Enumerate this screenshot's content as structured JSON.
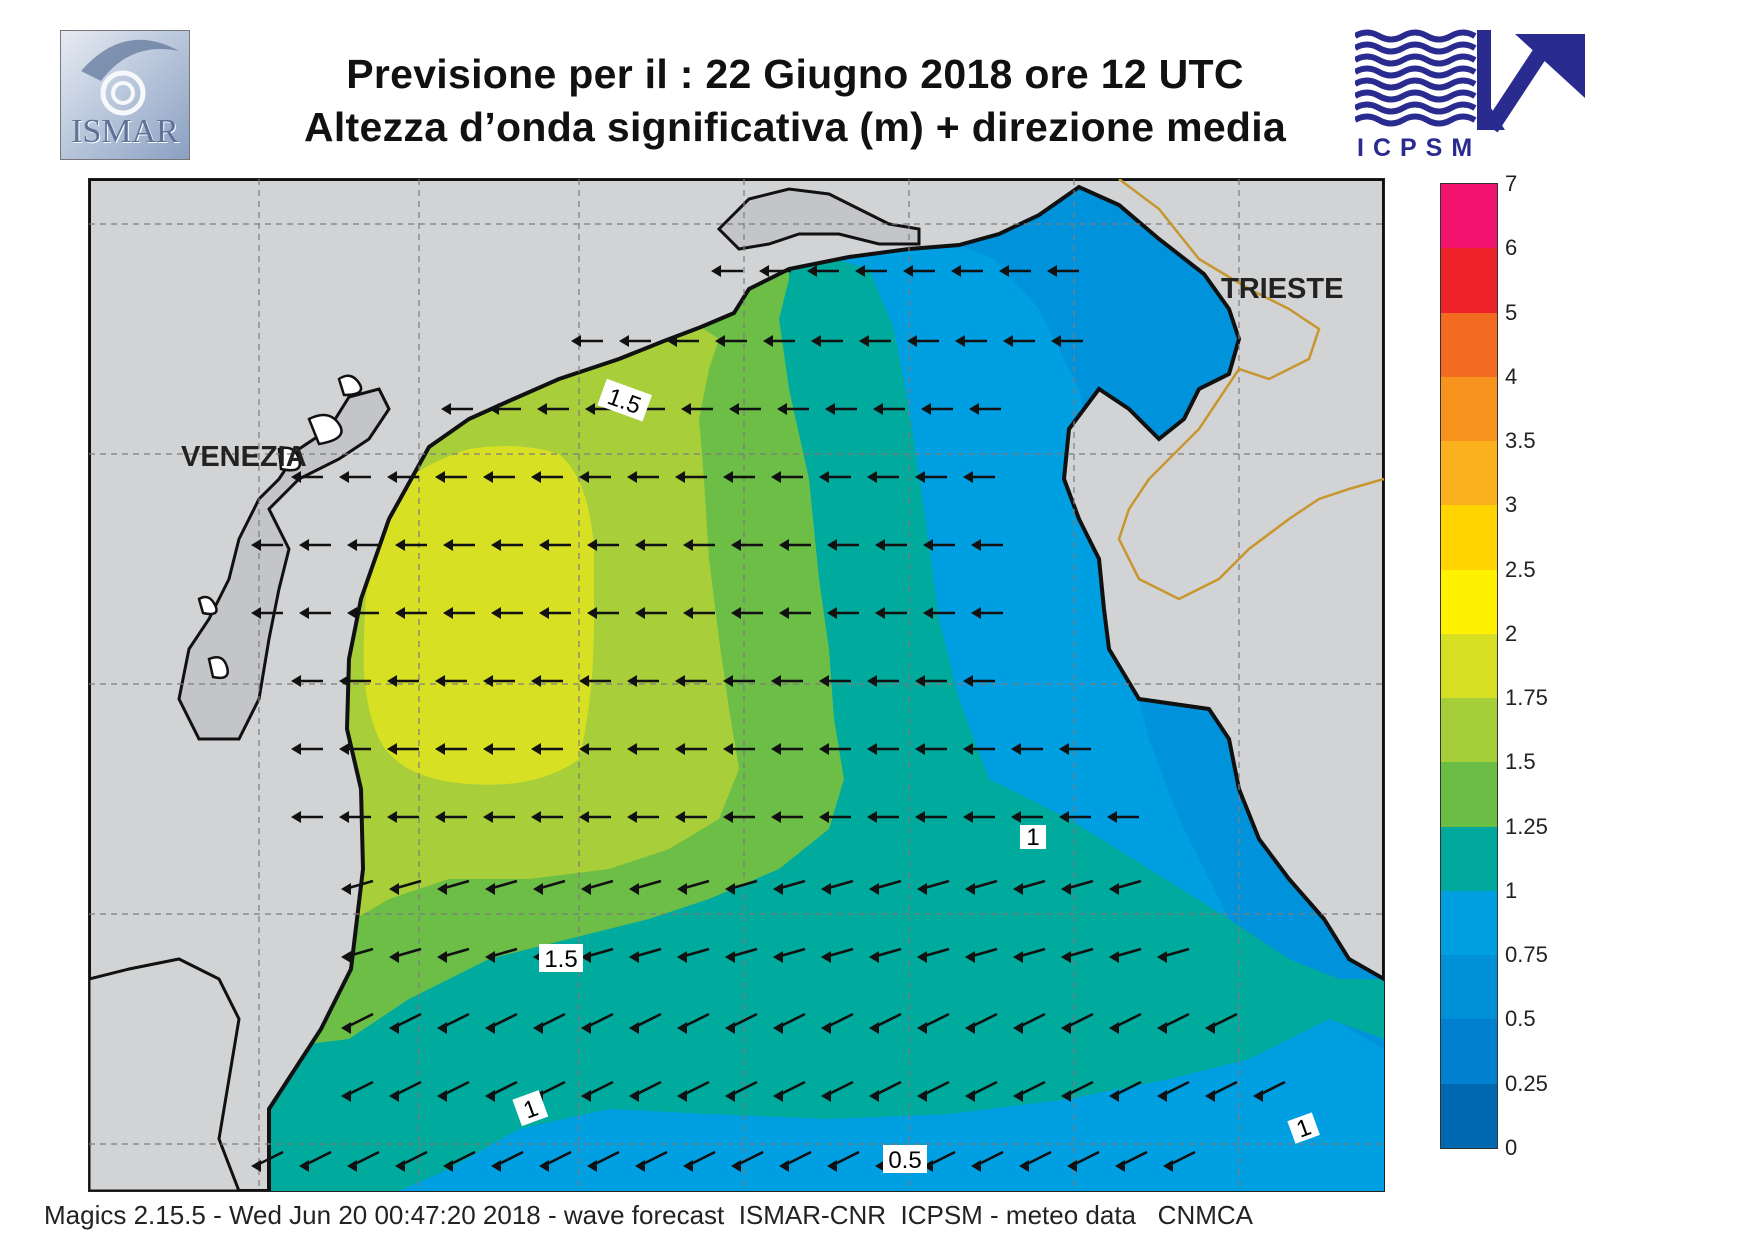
{
  "header": {
    "title_line1": "Previsione per il  :  22   Giugno  2018   ore 12 UTC",
    "title_line2": "Altezza d’onda significativa (m) + direzione media"
  },
  "logos": {
    "left": "ISMAR",
    "right": "ICPSM"
  },
  "map": {
    "labels": {
      "venezia": "VENEZIA",
      "trieste": "TRIESTE"
    },
    "contour_labels": [
      "1.5",
      "1.5",
      "1",
      "1",
      "1",
      "0.5"
    ],
    "land_color": "#d1d3d5",
    "coast_color": "#111111",
    "border_color": "#c8962f",
    "arrow_direction": "west"
  },
  "colorbar": {
    "ticks": [
      "7",
      "6",
      "5",
      "4",
      "3.5",
      "3",
      "2.5",
      "2",
      "1.75",
      "1.5",
      "1.25",
      "1",
      "0.75",
      "0.5",
      "0.25",
      "0"
    ],
    "colors": [
      "#f2136f",
      "#ee2229",
      "#f26b21",
      "#f7941d",
      "#fbb01d",
      "#ffd400",
      "#fff100",
      "#d7df23",
      "#a6ce39",
      "#6abd45",
      "#00a79d",
      "#00a0e0",
      "#0090d8",
      "#0080cf",
      "#0067b1"
    ]
  },
  "footer": {
    "text": "Magics 2.15.5 - Wed Jun 20 00:47:20 2018 - wave forecast  ISMAR-CNR  ICPSM - meteo data   CNMCA"
  }
}
